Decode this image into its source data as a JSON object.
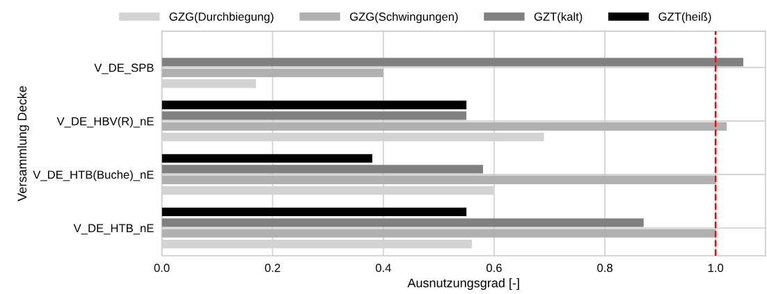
{
  "chart_data": {
    "type": "bar",
    "orientation": "horizontal",
    "xlabel": "Ausnutzungsgrad [-]",
    "ylabel": "Versammlung Decke",
    "categories": [
      "V_DE_SPB",
      "V_DE_HBV(R)_nE",
      "V_DE_HTB(Buche)_nE",
      "V_DE_HTB_nE"
    ],
    "series": [
      {
        "name": "GZG(Durchbiegung)",
        "color": "#d3d3d3",
        "values": [
          0.17,
          0.69,
          0.6,
          0.56
        ]
      },
      {
        "name": "GZG(Schwingungen)",
        "color": "#b0b0b0",
        "values": [
          0.4,
          1.02,
          1.0,
          1.0
        ]
      },
      {
        "name": "GZT(kalt)",
        "color": "#808080",
        "values": [
          1.05,
          0.55,
          0.58,
          0.87
        ]
      },
      {
        "name": "GZT(heiß)",
        "color": "#000000",
        "values": [
          null,
          0.55,
          0.38,
          0.55
        ]
      }
    ],
    "xlim": [
      0,
      1.09
    ],
    "xticks": [
      {
        "value": 0,
        "label": "0.0"
      },
      {
        "value": 0.2,
        "label": "0.2"
      },
      {
        "value": 0.4,
        "label": "0.4"
      },
      {
        "value": 0.6,
        "label": "0.6"
      },
      {
        "value": 0.8,
        "label": "0.8"
      },
      {
        "value": 1.0,
        "label": "1.0"
      }
    ],
    "ref_lines": [
      {
        "axis": "x",
        "value": 1.0,
        "color": "#ff0000",
        "line_style": "dashed"
      }
    ],
    "grid": true,
    "legend": "top"
  }
}
